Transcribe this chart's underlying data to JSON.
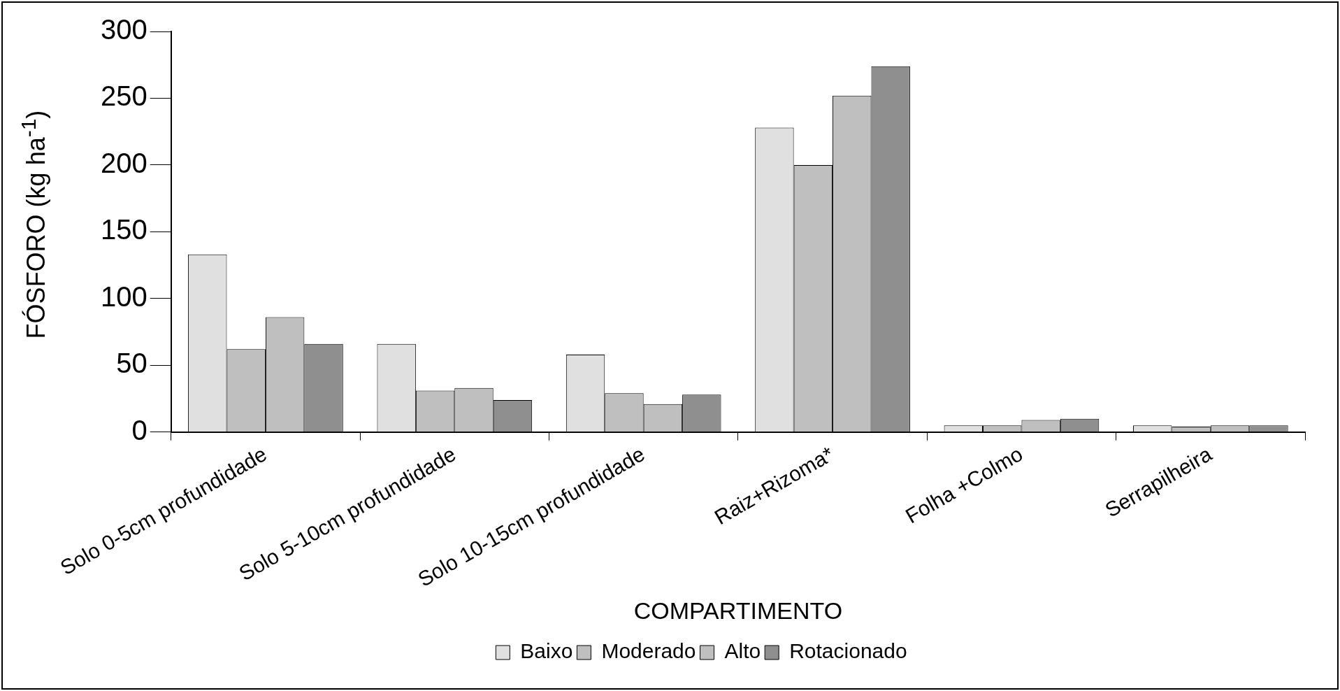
{
  "chart_data": {
    "type": "bar",
    "xlabel": "COMPARTIMENTO",
    "ylabel": "FÓSFORO (kg ha$^{-1}$)",
    "categories": [
      "Solo 0-5cm profundidade",
      "Solo 5-10cm profundidade",
      "Solo 10-15cm profundidade",
      "Raiz+Rizoma*",
      "Folha +Colmo",
      "Serrapilheira"
    ],
    "series": [
      {
        "name": "Baixo",
        "color": "#e0e0e0",
        "values": [
          133,
          66,
          58,
          228,
          5,
          5
        ]
      },
      {
        "name": "Moderado",
        "color": "#bfbfbf",
        "values": [
          62,
          31,
          29,
          200,
          5,
          4
        ]
      },
      {
        "name": "Alto",
        "color": "#bfbfbf",
        "values": [
          86,
          33,
          21,
          252,
          9,
          5
        ]
      },
      {
        "name": "Rotacionado",
        "color": "#8f8f8f",
        "values": [
          66,
          24,
          28,
          274,
          10,
          5
        ]
      }
    ],
    "ylim": [
      0,
      300
    ],
    "yticks": [
      0,
      50,
      100,
      150,
      200,
      250,
      300
    ],
    "legend": "bottom"
  }
}
